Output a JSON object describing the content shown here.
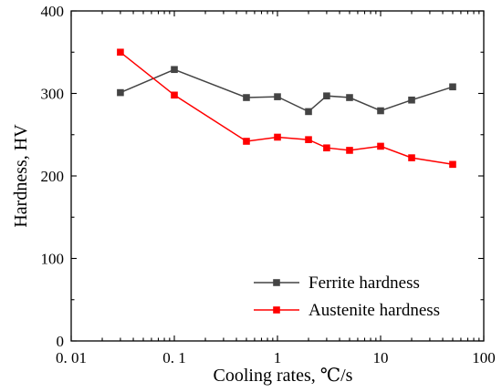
{
  "chart_data": {
    "type": "line",
    "xscale": "log",
    "xlim": [
      0.01,
      100
    ],
    "ylim": [
      0,
      400
    ],
    "xticks": [
      0.01,
      0.1,
      1,
      10,
      100
    ],
    "xtick_labels": [
      "0. 01",
      "0. 1",
      "1",
      "10",
      "100"
    ],
    "yticks": [
      0,
      100,
      200,
      300,
      400
    ],
    "ytick_labels": [
      "0",
      "100",
      "200",
      "300",
      "400"
    ],
    "xlabel": "Cooling rates, ℃/s",
    "ylabel": "Hardness, HV",
    "grid": false,
    "legend_position": "bottom-right",
    "series": [
      {
        "name": "Ferrite hardness",
        "color": "#444444",
        "marker": "square",
        "x": [
          0.03,
          0.1,
          0.5,
          1,
          2,
          3,
          5,
          10,
          20,
          50
        ],
        "y": [
          301,
          329,
          295,
          296,
          278,
          297,
          295,
          279,
          292,
          308
        ]
      },
      {
        "name": "Austenite hardness",
        "color": "#ff0000",
        "marker": "square",
        "x": [
          0.03,
          0.1,
          0.5,
          1,
          2,
          3,
          5,
          10,
          20,
          50
        ],
        "y": [
          350,
          298,
          242,
          247,
          244,
          234,
          231,
          236,
          222,
          214
        ]
      }
    ]
  }
}
